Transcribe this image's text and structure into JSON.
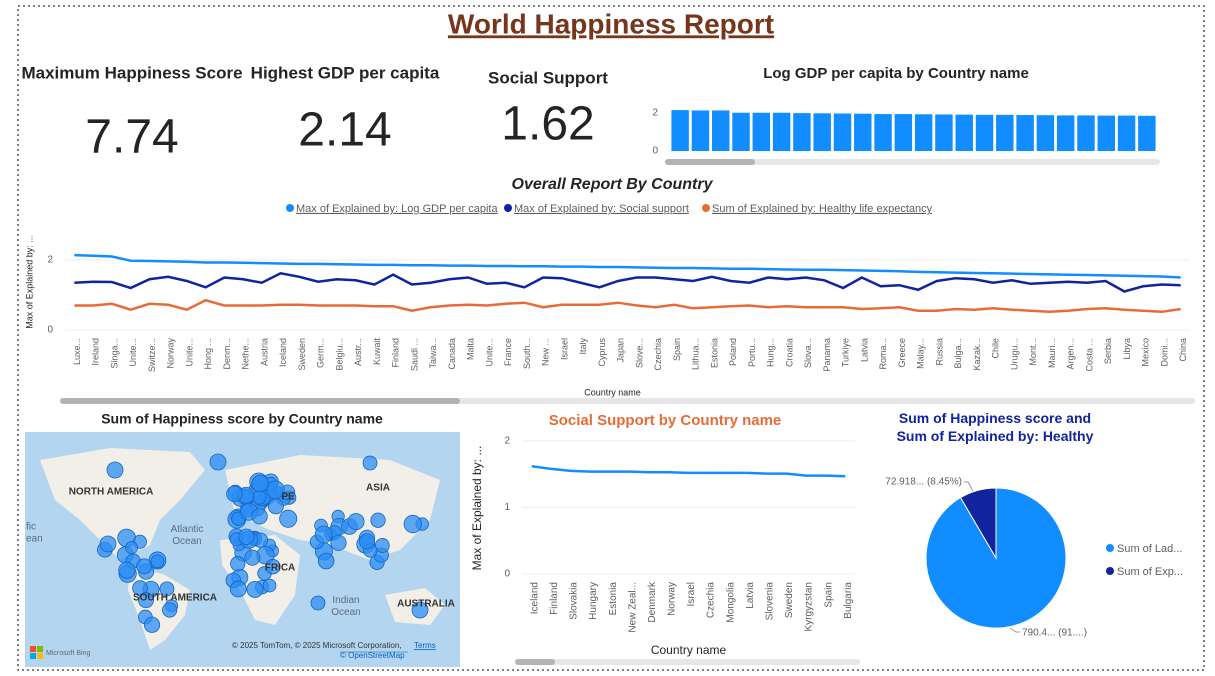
{
  "title": "World Happiness Report",
  "cards": [
    {
      "label": "Maximum Happiness Score",
      "value": 7.74
    },
    {
      "label": "Highest GDP per capita",
      "value": 2.14
    },
    {
      "label": "Social Support",
      "value": 1.62
    }
  ],
  "chart_data": [
    {
      "type": "bar",
      "title": "Log GDP per capita by Country name",
      "categories": [
        null,
        null,
        null,
        null,
        null,
        null,
        null,
        null,
        null,
        null,
        null,
        null,
        null,
        null,
        null,
        null,
        null,
        null,
        null,
        null,
        null,
        null,
        null,
        null
      ],
      "values": [
        2.14,
        2.12,
        2.12,
        2.0,
        2.0,
        2.0,
        1.98,
        1.97,
        1.96,
        1.95,
        1.93,
        1.93,
        1.92,
        1.91,
        1.9,
        1.89,
        1.89,
        1.88,
        1.87,
        1.86,
        1.86,
        1.85,
        1.85,
        1.84
      ],
      "color": "#118dff",
      "ylim": [
        0,
        2.3
      ],
      "yticks": [
        0,
        2
      ]
    },
    {
      "type": "line",
      "title": "Overall Report By Country",
      "x_label": "Country name",
      "y_label": "Max of Explained by: ...",
      "categories": [
        "Luxe...",
        "Ireland",
        "Singa...",
        "Unite...",
        "Switze...",
        "Norway",
        "Unite...",
        "Hong ...",
        "Denm...",
        "Nethe...",
        "Austria",
        "Iceland",
        "Sweden",
        "Germ...",
        "Belgiu...",
        "Austr...",
        "Kuwait",
        "Finland",
        "Saudi ...",
        "Taiwa...",
        "Canada",
        "Malta",
        "Unite...",
        "France",
        "South...",
        "New ...",
        "Israel",
        "Italy",
        "Cyprus",
        "Japan",
        "Slove...",
        "Czechia",
        "Spain",
        "Lithua...",
        "Estonia",
        "Poland",
        "Portu...",
        "Hung...",
        "Croatia",
        "Slova...",
        "Panama",
        "Turkiye",
        "Latvia",
        "Roma...",
        "Greece",
        "Malay...",
        "Russia",
        "Bulga...",
        "Kazak...",
        "Chile",
        "Urugu...",
        "Mont...",
        "Mauri...",
        "Argen...",
        "Costa ...",
        "Serbia",
        "Libya",
        "Mexico",
        "Domi...",
        "China"
      ],
      "series": [
        {
          "name": "Max of Explained by: Log GDP per capita",
          "color": "#118dff",
          "values": [
            2.14,
            2.12,
            2.1,
            1.98,
            1.97,
            1.96,
            1.95,
            1.93,
            1.93,
            1.92,
            1.91,
            1.9,
            1.89,
            1.89,
            1.88,
            1.87,
            1.86,
            1.86,
            1.85,
            1.85,
            1.84,
            1.84,
            1.83,
            1.83,
            1.82,
            1.82,
            1.81,
            1.81,
            1.8,
            1.8,
            1.79,
            1.78,
            1.77,
            1.77,
            1.76,
            1.75,
            1.75,
            1.74,
            1.73,
            1.72,
            1.72,
            1.71,
            1.7,
            1.69,
            1.68,
            1.66,
            1.65,
            1.64,
            1.63,
            1.62,
            1.61,
            1.6,
            1.59,
            1.58,
            1.57,
            1.56,
            1.55,
            1.54,
            1.53,
            1.5
          ]
        },
        {
          "name": "Max of Explained by: Social support",
          "color": "#12239e",
          "values": [
            1.35,
            1.38,
            1.37,
            1.2,
            1.45,
            1.52,
            1.4,
            1.22,
            1.5,
            1.45,
            1.35,
            1.62,
            1.52,
            1.38,
            1.45,
            1.42,
            1.3,
            1.58,
            1.3,
            1.35,
            1.45,
            1.5,
            1.32,
            1.35,
            1.22,
            1.5,
            1.48,
            1.35,
            1.22,
            1.4,
            1.5,
            1.5,
            1.45,
            1.4,
            1.52,
            1.4,
            1.35,
            1.5,
            1.45,
            1.5,
            1.42,
            1.2,
            1.5,
            1.25,
            1.28,
            1.15,
            1.4,
            1.48,
            1.45,
            1.35,
            1.42,
            1.32,
            1.35,
            1.38,
            1.35,
            1.4,
            1.1,
            1.25,
            1.3,
            1.28
          ]
        },
        {
          "name": "Sum of Explained by: Healthy life expectancy",
          "color": "#e66c37",
          "values": [
            0.7,
            0.7,
            0.75,
            0.58,
            0.75,
            0.72,
            0.58,
            0.85,
            0.7,
            0.7,
            0.7,
            0.72,
            0.72,
            0.7,
            0.7,
            0.7,
            0.68,
            0.68,
            0.55,
            0.65,
            0.7,
            0.72,
            0.7,
            0.75,
            0.78,
            0.65,
            0.72,
            0.72,
            0.72,
            0.78,
            0.7,
            0.65,
            0.72,
            0.62,
            0.65,
            0.68,
            0.7,
            0.65,
            0.68,
            0.65,
            0.65,
            0.65,
            0.6,
            0.62,
            0.65,
            0.55,
            0.55,
            0.6,
            0.58,
            0.62,
            0.58,
            0.55,
            0.52,
            0.55,
            0.6,
            0.62,
            0.58,
            0.55,
            0.52,
            0.6
          ]
        }
      ],
      "ylim": [
        0,
        2.8
      ],
      "yticks": [
        0,
        2
      ],
      "legend": "top"
    },
    {
      "type": "map",
      "title": "Sum of Happiness score by Country name",
      "labels": [
        "NORTH AMERICA",
        "Atlantic Ocean",
        "ASIA",
        "PE",
        "FRICA",
        "SOUTH AMERICA",
        "Indian Ocean",
        "AUSTRALIA",
        "fic",
        "ean"
      ],
      "attribution": "© 2025 TomTom, © 2025 Microsoft Corporation,",
      "terms": "Terms",
      "osm": "© OpenStreetMap",
      "provider": "Microsoft Bing"
    },
    {
      "type": "line",
      "title": "Social Support by Country name",
      "x_label": "Country name",
      "y_label": "Max of Explained by: ...",
      "categories": [
        "Iceland",
        "Finland",
        "Slovakia",
        "Hungary",
        "Estonia",
        "New Zeal...",
        "Denmark",
        "Norway",
        "Israel",
        "Czechia",
        "Mongolia",
        "Latvia",
        "Slovenia",
        "Sweden",
        "Kyrgyzstan",
        "Spain",
        "Bulgaria"
      ],
      "values": [
        1.62,
        1.58,
        1.55,
        1.54,
        1.54,
        1.54,
        1.53,
        1.53,
        1.52,
        1.52,
        1.52,
        1.52,
        1.51,
        1.51,
        1.48,
        1.48,
        1.47
      ],
      "color": "#118dff",
      "ylim": [
        0,
        2
      ],
      "yticks": [
        0,
        1,
        2
      ]
    },
    {
      "type": "pie",
      "title": "Sum of Happiness score and Sum of Explained by: Healthy life expectancy",
      "categories": [
        "Sum of Lad...",
        "Sum of Exp..."
      ],
      "values": [
        790.4,
        72.918
      ],
      "value_labels": [
        "790.4... (91....)",
        "72.918... (8.45%)"
      ],
      "colors": [
        "#118dff",
        "#12239e"
      ],
      "legend": "right"
    }
  ]
}
